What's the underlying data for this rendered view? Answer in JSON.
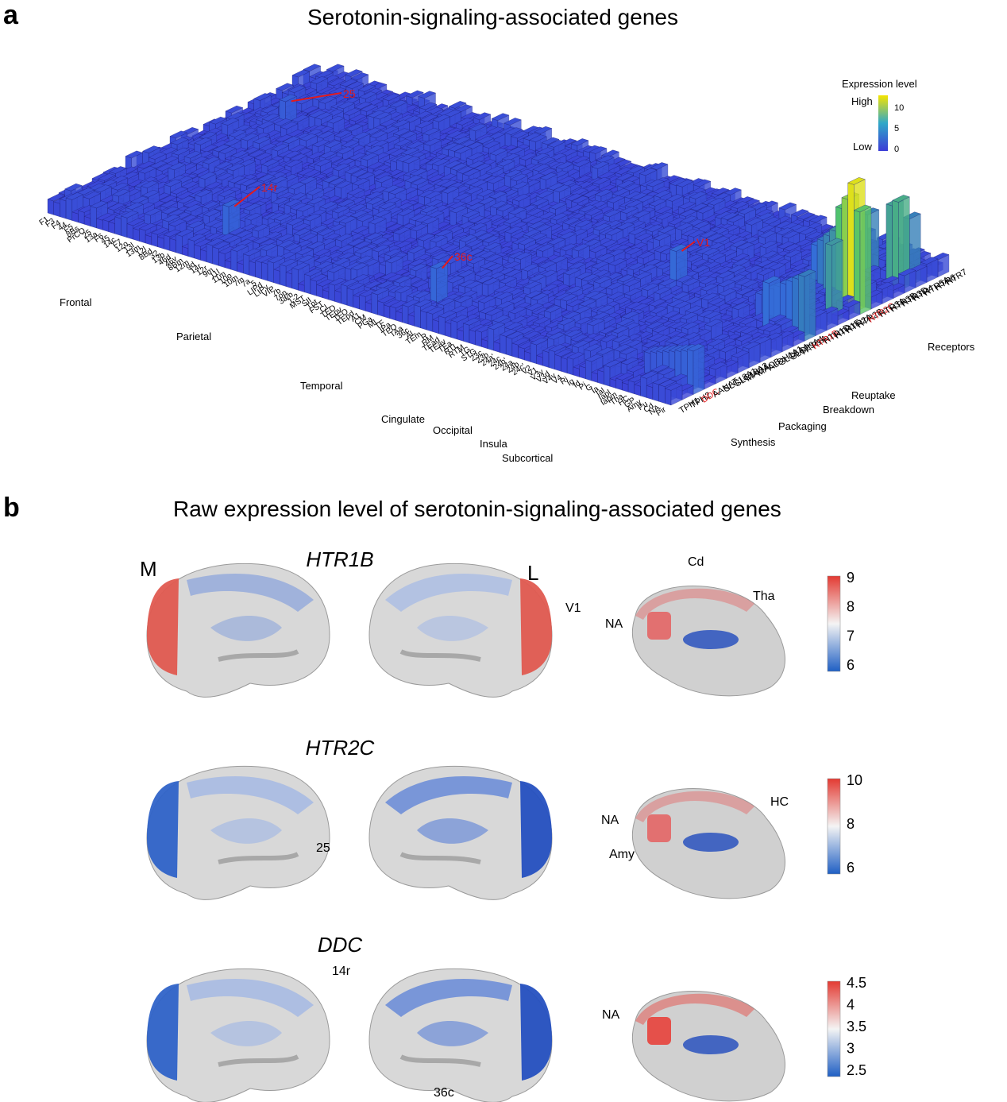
{
  "panel_a": {
    "letter": "a",
    "title": "Serotonin-signaling-associated genes"
  },
  "panel_b": {
    "letter": "b",
    "title": "Raw expression level of serotonin-signaling-associated genes"
  },
  "colors": {
    "low": "#3b3bd6",
    "mid": "#2fa8c8",
    "high": "#f5e400",
    "red_label": "#e41a1c",
    "blue_scale": "#1f5fc4",
    "red_scale": "#e33a32",
    "gray_brain": "#dcdcdc"
  },
  "chart_data": [
    {
      "type": "bar3d",
      "title": "Serotonin-signaling-associated genes",
      "colorbar": {
        "title": "Expression level",
        "high_label": "High",
        "low_label": "Low",
        "ticks": [
          "10",
          "5",
          "0"
        ]
      },
      "regions": [
        "F1",
        "F3",
        "F4",
        "44",
        "F5",
        "8Bs",
        "PrCO",
        "25",
        "13a",
        "F6",
        "45",
        "14c",
        "F7",
        "12o",
        "13l",
        "13m",
        "12l",
        "8Bd",
        "32",
        "13b",
        "46d",
        "46v",
        "8Bm",
        "12m",
        "9d",
        "14r",
        "12r",
        "9m",
        "11l",
        "11m",
        "10o",
        "10m",
        "7m",
        "7a",
        "5",
        "LIPd",
        "LIPv",
        "VIP",
        "7b",
        "7op",
        "3a/b",
        "1-2",
        "MST",
        "SII",
        "Tpt",
        "FST",
        "CL",
        "TEO",
        "TEpv",
        "TFO",
        "TEpd",
        "A1",
        "CM",
        "PGa",
        "ML",
        "TF",
        "IPa",
        "TPO",
        "TAa",
        "36c",
        "AL",
        "TEm",
        "R",
        "RM",
        "TEad",
        "TEav",
        "TEa",
        "RTL",
        "RTM",
        "TG",
        "STG",
        "23c",
        "23b",
        "24a'",
        "24c",
        "24b'",
        "24a",
        "24b",
        "24c'",
        "V2",
        "V1",
        "V3v",
        "V3d",
        "V4v",
        "V4",
        "Ri",
        "Ig",
        "Id",
        "Pi",
        "G",
        "Ia",
        "Ial",
        "Iapl",
        "Iapm",
        "Tha",
        "HC",
        "GP",
        "Amy",
        "Pu",
        "Cd",
        "NA",
        "Pir"
      ],
      "region_groups": [
        "Frontal",
        "Parietal",
        "Temporal",
        "Cingulate",
        "Occipital",
        "Insula",
        "Subcortical"
      ],
      "genes": [
        "TPH1",
        "TPH2",
        "DDC",
        "AANAT",
        "SLC18A1",
        "SLC18A2",
        "MAOA",
        "MAOB",
        "ALDH1A1",
        "SLC6A4",
        "SLC29A4",
        "HTR1A",
        "HTR1B",
        "HTR1D",
        "HTR1F",
        "HTR2A",
        "HTR2B",
        "HTR2C",
        "HTR3A",
        "HTR3B",
        "HTR3D",
        "HTR4",
        "HTR5A",
        "HTR6",
        "HTR7"
      ],
      "highlighted_genes": [
        "DDC",
        "HTR1B",
        "HTR2C"
      ],
      "gene_groups": [
        "Synthesis",
        "Packaging",
        "Breakdown",
        "Reuptake",
        "Receptors"
      ],
      "annotations": [
        "25",
        "14r",
        "36c",
        "V1"
      ],
      "zlim": [
        0,
        12
      ]
    },
    {
      "type": "brain_map",
      "title": "HTR1B",
      "view_labels": [
        "M",
        "L"
      ],
      "colorbar_ticks": [
        "9",
        "8",
        "7",
        "6"
      ],
      "range": [
        5.6,
        9.2
      ],
      "labels": [
        "V1",
        "Cd",
        "Tha",
        "NA"
      ]
    },
    {
      "type": "brain_map",
      "title": "HTR2C",
      "colorbar_ticks": [
        "10",
        "8",
        "6"
      ],
      "range": [
        6,
        10.5
      ],
      "labels": [
        "25",
        "NA",
        "HC",
        "Amy"
      ]
    },
    {
      "type": "brain_map",
      "title": "DDC",
      "colorbar_ticks": [
        "4.5",
        "4",
        "3.5",
        "3",
        "2.5"
      ],
      "range": [
        2.3,
        4.9
      ],
      "labels": [
        "14r",
        "36c",
        "NA"
      ]
    }
  ]
}
